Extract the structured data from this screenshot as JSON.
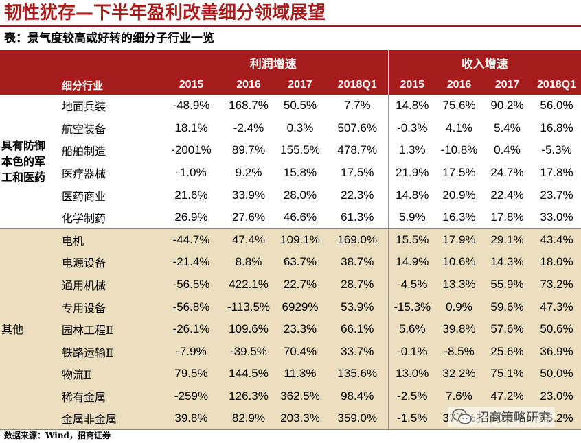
{
  "slide": {
    "title": "韧性犹存—下半年盈利改善细分领域展望",
    "caption": "表：景气度较高或好转的细分子行业一览"
  },
  "table": {
    "group_headers": {
      "profit": "利润增速",
      "revenue": "收入增速"
    },
    "column_label": "细分行业",
    "years": [
      "2015",
      "2016",
      "2017",
      "2018Q1"
    ],
    "groups": [
      {
        "name_lines": [
          "具有防御",
          "本色的军",
          "工和医药"
        ],
        "rows": [
          {
            "name": "地面兵装",
            "profit": [
              "-48.9%",
              "168.7%",
              "50.5%",
              "7.7%"
            ],
            "revenue": [
              "14.8%",
              "75.6%",
              "90.2%",
              "56.0%"
            ]
          },
          {
            "name": "航空装备",
            "profit": [
              "18.1%",
              "-2.4%",
              "0.3%",
              "507.6%"
            ],
            "revenue": [
              "-0.3%",
              "4.1%",
              "5.4%",
              "16.8%"
            ]
          },
          {
            "name": "船舶制造",
            "profit": [
              "-2001%",
              "89.7%",
              "155.5%",
              "478.7%"
            ],
            "revenue": [
              "1.3%",
              "-10.8%",
              "0.4%",
              "-5.3%"
            ]
          },
          {
            "name": "医疗器械",
            "profit": [
              "-1.0%",
              "9.2%",
              "15.8%",
              "17.5%"
            ],
            "revenue": [
              "21.9%",
              "17.5%",
              "24.7%",
              "17.8%"
            ]
          },
          {
            "name": "医药商业",
            "profit": [
              "21.6%",
              "33.9%",
              "28.0%",
              "22.3%"
            ],
            "revenue": [
              "14.8%",
              "20.9%",
              "22.4%",
              "23.7%"
            ]
          },
          {
            "name": "化学制药",
            "profit": [
              "26.9%",
              "27.6%",
              "46.6%",
              "61.3%"
            ],
            "revenue": [
              "5.9%",
              "16.3%",
              "17.8%",
              "33.0%"
            ]
          }
        ]
      },
      {
        "name_lines": [
          "其他"
        ],
        "rows": [
          {
            "name": "电机",
            "profit": [
              "-44.7%",
              "47.4%",
              "109.1%",
              "169.0%"
            ],
            "revenue": [
              "15.5%",
              "17.9%",
              "29.1%",
              "43.4%"
            ]
          },
          {
            "name": "电源设备",
            "profit": [
              "-21.4%",
              "8.8%",
              "63.7%",
              "38.7%"
            ],
            "revenue": [
              "14.9%",
              "10.6%",
              "14.3%",
              "18.0%"
            ]
          },
          {
            "name": "通用机械",
            "profit": [
              "-56.5%",
              "422.1%",
              "22.7%",
              "28.7%"
            ],
            "revenue": [
              "-4.5%",
              "13.3%",
              "55.9%",
              "73.2%"
            ]
          },
          {
            "name": "专用设备",
            "profit": [
              "-56.8%",
              "-113.5%",
              "6929%",
              "53.9%"
            ],
            "revenue": [
              "-15.3%",
              "0.9%",
              "59.6%",
              "47.3%"
            ]
          },
          {
            "name": "园林工程Ⅱ",
            "profit": [
              "-26.1%",
              "109.6%",
              "23.3%",
              "66.1%"
            ],
            "revenue": [
              "5.6%",
              "39.8%",
              "57.6%",
              "50.6%"
            ]
          },
          {
            "name": "铁路运输Ⅱ",
            "profit": [
              "-7.9%",
              "-39.5%",
              "70.4%",
              "33.7%"
            ],
            "revenue": [
              "-0.1%",
              "-8.5%",
              "25.6%",
              "36.9%"
            ]
          },
          {
            "name": "物流Ⅱ",
            "profit": [
              "79.5%",
              "144.5%",
              "11.3%",
              "135.6%"
            ],
            "revenue": [
              "13.0%",
              "32.2%",
              "75.1%",
              "50.0%"
            ]
          },
          {
            "name": "稀有金属",
            "profit": [
              "-259%",
              "126.3%",
              "362.5%",
              "98.4%"
            ],
            "revenue": [
              "-2.5%",
              "7.6%",
              "47.2%",
              "23.0%"
            ]
          },
          {
            "name": "金属非金属",
            "profit": [
              "39.8%",
              "82.9%",
              "203.3%",
              "359.0%"
            ],
            "revenue": [
              "-1.5%",
              "37.2%",
              "50.0%",
              "45.2%"
            ]
          }
        ]
      }
    ]
  },
  "source": "数据来源：Wind，招商证券",
  "watermark": {
    "text": "招商策略研究",
    "icon": "wechat-icon"
  },
  "colors": {
    "header_bg": "#a61b1b",
    "group2_bg": "#ebdfbf",
    "title": "#a61b1b"
  }
}
